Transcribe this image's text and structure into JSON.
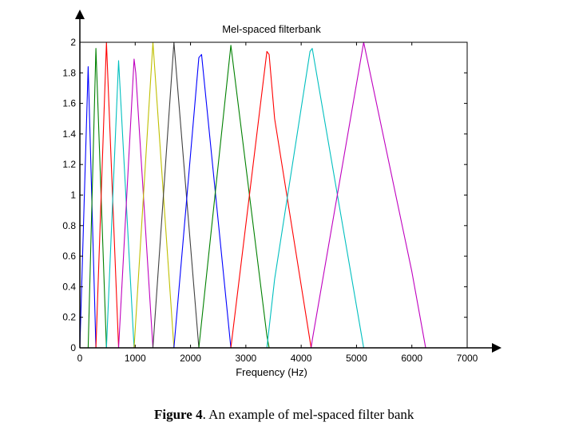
{
  "caption": {
    "label": "Figure 4",
    "text": ". An example of mel-spaced filter bank"
  },
  "chart_data": {
    "type": "line",
    "title": "Mel-spaced filterbank",
    "xlabel": "Frequency (Hz)",
    "ylabel": "",
    "xlim": [
      0,
      7000
    ],
    "ylim": [
      0,
      2
    ],
    "xticks": [
      0,
      1000,
      2000,
      3000,
      4000,
      5000,
      6000,
      7000
    ],
    "yticks": [
      0,
      0.2,
      0.4,
      0.6,
      0.8,
      1,
      1.2,
      1.4,
      1.6,
      1.8,
      2
    ],
    "ytick_labels": [
      "0",
      "0.2",
      "0.4",
      "0.6",
      "0.8",
      "1",
      "1.2",
      "1.4",
      "1.6",
      "1.8",
      "2"
    ],
    "grid": false,
    "colors": [
      "#0000ff",
      "#008000",
      "#ff0000",
      "#00bfbf",
      "#bf00bf",
      "#bfbf00",
      "#404040"
    ],
    "series": [
      {
        "color": "#0000ff",
        "points": [
          [
            0,
            0
          ],
          [
            150,
            1.84
          ],
          [
            290,
            0
          ]
        ]
      },
      {
        "color": "#008000",
        "points": [
          [
            150,
            0
          ],
          [
            290,
            1.96
          ],
          [
            480,
            0
          ]
        ]
      },
      {
        "color": "#ff0000",
        "points": [
          [
            290,
            0
          ],
          [
            480,
            2.0
          ],
          [
            700,
            0
          ]
        ]
      },
      {
        "color": "#00bfbf",
        "points": [
          [
            480,
            0
          ],
          [
            700,
            1.88
          ],
          [
            980,
            0
          ]
        ]
      },
      {
        "color": "#bf00bf",
        "points": [
          [
            700,
            0
          ],
          [
            980,
            1.89
          ],
          [
            1010,
            1.8
          ],
          [
            1320,
            0
          ]
        ]
      },
      {
        "color": "#bfbf00",
        "points": [
          [
            980,
            0
          ],
          [
            1320,
            2.0
          ],
          [
            1700,
            0
          ]
        ]
      },
      {
        "color": "#404040",
        "points": [
          [
            1320,
            0
          ],
          [
            1700,
            2.0
          ],
          [
            2150,
            0
          ]
        ]
      },
      {
        "color": "#0000ff",
        "points": [
          [
            1700,
            0
          ],
          [
            2150,
            1.9
          ],
          [
            2200,
            1.92
          ],
          [
            2730,
            0
          ]
        ]
      },
      {
        "color": "#008000",
        "points": [
          [
            2150,
            0
          ],
          [
            2730,
            1.98
          ],
          [
            3380,
            0.08
          ],
          [
            3420,
            0
          ]
        ]
      },
      {
        "color": "#ff0000",
        "points": [
          [
            2730,
            0
          ],
          [
            3380,
            1.94
          ],
          [
            3420,
            1.92
          ],
          [
            3520,
            1.5
          ],
          [
            4180,
            0
          ]
        ]
      },
      {
        "color": "#00bfbf",
        "points": [
          [
            3380,
            0
          ],
          [
            3520,
            0.45
          ],
          [
            4160,
            1.94
          ],
          [
            4200,
            1.96
          ],
          [
            5130,
            0
          ]
        ]
      },
      {
        "color": "#bf00bf",
        "points": [
          [
            4180,
            0
          ],
          [
            4200,
            0.05
          ],
          [
            5130,
            2.0
          ],
          [
            6000,
            0.5
          ],
          [
            6250,
            0
          ]
        ]
      }
    ]
  }
}
